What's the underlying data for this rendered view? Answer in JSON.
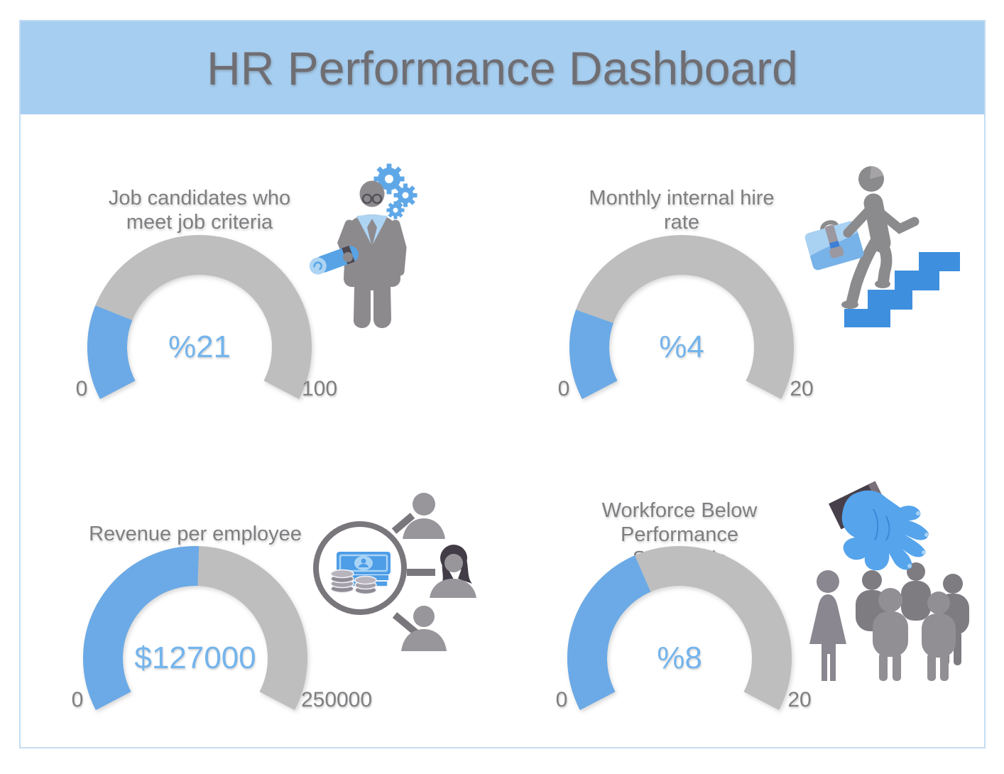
{
  "header": {
    "title": "HR Performance Dashboard"
  },
  "theme": {
    "header_bg": "#A6CEF0",
    "page_border": "#C3DCF2",
    "title_text": "#6F6E73",
    "label_text": "#7F7F82",
    "gauge_fill": "#6BAAE7",
    "gauge_track": "#BEBEBE",
    "value_text": "#74B4EC"
  },
  "chart_data": [
    {
      "type": "gauge",
      "title": "Job candidates who meet job criteria",
      "value": 21,
      "min": 0,
      "max": 100,
      "display": "%21",
      "icon": "hr-specialist-icon"
    },
    {
      "type": "gauge",
      "title": "Monthly internal hire rate",
      "value": 4,
      "min": 0,
      "max": 20,
      "display": "%4",
      "icon": "career-ladder-icon"
    },
    {
      "type": "gauge",
      "title": "Revenue per employee",
      "value": 127000,
      "min": 0,
      "max": 250000,
      "display": "$127000",
      "icon": "money-magnifier-icon"
    },
    {
      "type": "gauge",
      "title": "Workforce Below Performance Standards",
      "value": 8,
      "min": 0,
      "max": 20,
      "display": "%8",
      "icon": "headhunter-hand-icon"
    }
  ]
}
